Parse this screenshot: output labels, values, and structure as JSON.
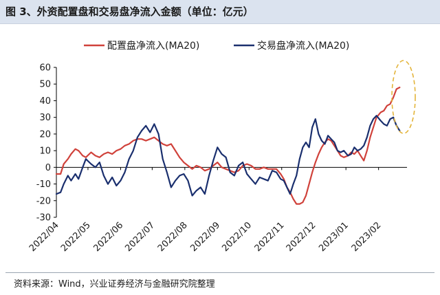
{
  "title": "图 3、外资配置盘和交易盘净流入金额（单位：亿元）",
  "source": "资料来源：Wind，兴业证券经济与金融研究院整理",
  "chart_data": {
    "type": "line",
    "ylim": [
      -30,
      60
    ],
    "yticks": [
      -30,
      -20,
      -10,
      0,
      10,
      20,
      30,
      40,
      50,
      60
    ],
    "xlim": [
      "2022/04/01",
      "2023/02/28"
    ],
    "xticks": [
      "2022/04",
      "2022/05",
      "2022/06",
      "2022/07",
      "2022/08",
      "2022/09",
      "2022/10",
      "2022/11",
      "2022/12",
      "2023/01",
      "2023/02"
    ],
    "legend_position": "top-center",
    "grid": false,
    "annotation": "dashed-ellipse-highlight-feb-2023",
    "series": [
      {
        "name": "配置盘净流入(MA20)",
        "color": "#d0413a",
        "x": [
          "2022/04/01",
          "2022/04/05",
          "2022/04/08",
          "2022/04/12",
          "2022/04/15",
          "2022/04/19",
          "2022/04/22",
          "2022/04/26",
          "2022/04/29",
          "2022/05/04",
          "2022/05/08",
          "2022/05/12",
          "2022/05/16",
          "2022/05/20",
          "2022/05/24",
          "2022/05/28",
          "2022/06/01",
          "2022/06/05",
          "2022/06/09",
          "2022/06/13",
          "2022/06/17",
          "2022/06/21",
          "2022/06/25",
          "2022/06/29",
          "2022/07/03",
          "2022/07/07",
          "2022/07/11",
          "2022/07/15",
          "2022/07/19",
          "2022/07/23",
          "2022/07/27",
          "2022/07/31",
          "2022/08/04",
          "2022/08/08",
          "2022/08/12",
          "2022/08/16",
          "2022/08/20",
          "2022/08/24",
          "2022/08/28",
          "2022/09/01",
          "2022/09/05",
          "2022/09/09",
          "2022/09/13",
          "2022/09/17",
          "2022/09/21",
          "2022/09/25",
          "2022/09/29",
          "2022/10/03",
          "2022/10/07",
          "2022/10/11",
          "2022/10/15",
          "2022/10/19",
          "2022/10/23",
          "2022/10/27",
          "2022/10/31",
          "2022/11/03",
          "2022/11/06",
          "2022/11/09",
          "2022/11/12",
          "2022/11/15",
          "2022/11/18",
          "2022/11/21",
          "2022/11/24",
          "2022/11/27",
          "2022/11/30",
          "2022/12/03",
          "2022/12/06",
          "2022/12/09",
          "2022/12/12",
          "2022/12/15",
          "2022/12/18",
          "2022/12/21",
          "2022/12/24",
          "2022/12/27",
          "2022/12/30",
          "2023/01/03",
          "2023/01/06",
          "2023/01/09",
          "2023/01/12",
          "2023/01/15",
          "2023/01/18",
          "2023/01/21",
          "2023/01/24",
          "2023/01/27",
          "2023/01/30",
          "2023/02/03",
          "2023/02/06",
          "2023/02/09",
          "2023/02/12",
          "2023/02/15",
          "2023/02/18",
          "2023/02/21"
        ],
        "values": [
          -4,
          -4,
          2,
          5,
          8,
          11,
          10,
          7,
          6,
          9,
          7,
          6,
          8,
          9,
          8,
          10,
          11,
          13,
          14,
          16,
          17,
          17,
          16,
          17,
          18,
          16,
          14,
          13,
          14,
          10,
          6,
          3,
          1,
          -1,
          1,
          0,
          -2,
          -1,
          1,
          3,
          0,
          -1,
          -2,
          -3,
          -2,
          1,
          2,
          1,
          -1,
          -1,
          0,
          -1,
          -1,
          -1,
          -4,
          -7,
          -12,
          -15,
          -19,
          -22,
          -22,
          -21,
          -17,
          -10,
          -3,
          3,
          8,
          12,
          15,
          17,
          16,
          13,
          10,
          7,
          6,
          7,
          9,
          8,
          10,
          7,
          4,
          10,
          18,
          24,
          30,
          33,
          34,
          37,
          38,
          42,
          47,
          48
        ]
      },
      {
        "name": "交易盘净流入(MA20)",
        "color": "#1a2f6e",
        "x": [
          "2022/04/01",
          "2022/04/05",
          "2022/04/08",
          "2022/04/12",
          "2022/04/15",
          "2022/04/19",
          "2022/04/22",
          "2022/04/26",
          "2022/04/29",
          "2022/05/04",
          "2022/05/08",
          "2022/05/12",
          "2022/05/16",
          "2022/05/20",
          "2022/05/24",
          "2022/05/28",
          "2022/06/01",
          "2022/06/05",
          "2022/06/09",
          "2022/06/13",
          "2022/06/17",
          "2022/06/21",
          "2022/06/25",
          "2022/06/29",
          "2022/07/03",
          "2022/07/07",
          "2022/07/11",
          "2022/07/15",
          "2022/07/19",
          "2022/07/23",
          "2022/07/27",
          "2022/07/31",
          "2022/08/04",
          "2022/08/08",
          "2022/08/12",
          "2022/08/16",
          "2022/08/20",
          "2022/08/24",
          "2022/08/28",
          "2022/09/01",
          "2022/09/05",
          "2022/09/09",
          "2022/09/13",
          "2022/09/17",
          "2022/09/21",
          "2022/09/25",
          "2022/09/29",
          "2022/10/03",
          "2022/10/07",
          "2022/10/11",
          "2022/10/15",
          "2022/10/19",
          "2022/10/23",
          "2022/10/27",
          "2022/10/31",
          "2022/11/03",
          "2022/11/06",
          "2022/11/09",
          "2022/11/12",
          "2022/11/15",
          "2022/11/18",
          "2022/11/21",
          "2022/11/24",
          "2022/11/27",
          "2022/11/30",
          "2022/12/03",
          "2022/12/06",
          "2022/12/09",
          "2022/12/12",
          "2022/12/15",
          "2022/12/18",
          "2022/12/21",
          "2022/12/24",
          "2022/12/27",
          "2022/12/30",
          "2023/01/03",
          "2023/01/06",
          "2023/01/09",
          "2023/01/12",
          "2023/01/15",
          "2023/01/18",
          "2023/01/21",
          "2023/01/24",
          "2023/01/27",
          "2023/01/30",
          "2023/02/03",
          "2023/02/06",
          "2023/02/09",
          "2023/02/12",
          "2023/02/15",
          "2023/02/18",
          "2023/02/21"
        ],
        "values": [
          -16,
          -15,
          -10,
          -5,
          -8,
          -4,
          -7,
          0,
          5,
          2,
          0,
          3,
          -5,
          -10,
          -6,
          -11,
          -8,
          -3,
          5,
          10,
          18,
          22,
          25,
          21,
          26,
          20,
          5,
          -3,
          -12,
          -8,
          -5,
          -4,
          -8,
          -17,
          -14,
          -12,
          -16,
          -5,
          4,
          12,
          8,
          6,
          -3,
          -5,
          1,
          3,
          -4,
          -7,
          -10,
          -6,
          -7,
          -8,
          -2,
          -3,
          -7,
          -8,
          -12,
          -16,
          -10,
          -5,
          5,
          12,
          15,
          12,
          24,
          29,
          20,
          16,
          14,
          19,
          17,
          15,
          10,
          9,
          10,
          7,
          8,
          12,
          10,
          11,
          13,
          18,
          25,
          29,
          31,
          28,
          26,
          25,
          29,
          30,
          25,
          22
        ]
      }
    ]
  }
}
